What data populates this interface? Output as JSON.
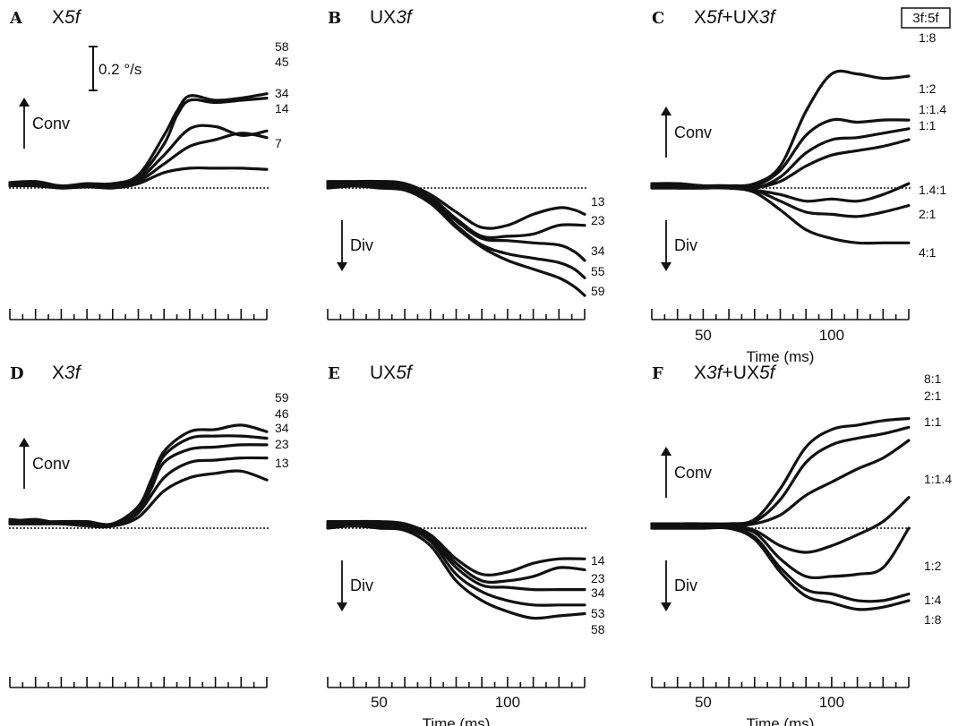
{
  "legend_box_label": "3f:5f",
  "scale_bar_label": "0.2 °/s",
  "scale_bar_value_deg_per_s": 0.2,
  "chart_data": [
    {
      "id": "A",
      "letter": "A",
      "type": "line",
      "title_parts": [
        {
          "t": "X",
          "i": false
        },
        {
          "t": "5f",
          "i": true
        }
      ],
      "direction": "up",
      "direction_label": "Conv",
      "xlabel": "",
      "xticks": [],
      "series": [
        {
          "label": "58",
          "x": [
            30,
            40,
            50,
            60,
            70,
            80,
            90,
            95,
            100,
            110,
            120,
            130
          ],
          "y": [
            0.025,
            0.03,
            0.01,
            0.02,
            0.02,
            0.06,
            0.24,
            0.35,
            0.42,
            0.4,
            0.41,
            0.43
          ]
        },
        {
          "label": "45",
          "x": [
            30,
            40,
            50,
            60,
            70,
            80,
            90,
            95,
            100,
            110,
            120,
            130
          ],
          "y": [
            0.015,
            0.02,
            0.0,
            0.01,
            0.015,
            0.05,
            0.2,
            0.33,
            0.4,
            0.39,
            0.4,
            0.41
          ]
        },
        {
          "label": "34",
          "x": [
            30,
            40,
            50,
            60,
            70,
            80,
            90,
            100,
            110,
            120,
            130
          ],
          "y": [
            0.02,
            0.02,
            0.005,
            0.005,
            0.01,
            0.04,
            0.15,
            0.27,
            0.28,
            0.24,
            0.26
          ]
        },
        {
          "label": "14",
          "x": [
            30,
            40,
            50,
            60,
            70,
            80,
            90,
            100,
            110,
            120,
            130
          ],
          "y": [
            0.01,
            0.015,
            0.0,
            0.01,
            0.005,
            0.03,
            0.11,
            0.19,
            0.22,
            0.25,
            0.23
          ]
        },
        {
          "label": "7",
          "x": [
            30,
            40,
            50,
            60,
            70,
            80,
            90,
            100,
            110,
            120,
            130
          ],
          "y": [
            0.01,
            0.01,
            0.0,
            0.005,
            0.0,
            0.02,
            0.07,
            0.09,
            0.09,
            0.09,
            0.085
          ]
        }
      ]
    },
    {
      "id": "B",
      "letter": "B",
      "type": "line",
      "title_parts": [
        {
          "t": "UX",
          "i": false
        },
        {
          "t": "3f",
          "i": true
        }
      ],
      "direction": "down",
      "direction_label": "Div",
      "xlabel": "",
      "xticks": [],
      "series": [
        {
          "label": "13",
          "x": [
            30,
            40,
            50,
            60,
            70,
            80,
            90,
            100,
            110,
            120,
            126,
            130
          ],
          "y": [
            0.03,
            0.03,
            0.03,
            0.02,
            -0.03,
            -0.11,
            -0.18,
            -0.17,
            -0.12,
            -0.09,
            -0.1,
            -0.12
          ]
        },
        {
          "label": "23",
          "x": [
            30,
            40,
            50,
            60,
            70,
            80,
            90,
            100,
            110,
            120,
            130
          ],
          "y": [
            0.02,
            0.02,
            0.03,
            0.02,
            -0.04,
            -0.14,
            -0.22,
            -0.22,
            -0.21,
            -0.17,
            -0.17
          ]
        },
        {
          "label": "34",
          "x": [
            30,
            40,
            50,
            60,
            70,
            80,
            90,
            100,
            110,
            120,
            126,
            130
          ],
          "y": [
            0.01,
            0.02,
            0.02,
            0.01,
            -0.05,
            -0.15,
            -0.23,
            -0.24,
            -0.25,
            -0.26,
            -0.29,
            -0.33
          ]
        },
        {
          "label": "55",
          "x": [
            30,
            40,
            50,
            60,
            70,
            80,
            90,
            100,
            110,
            120,
            126,
            130
          ],
          "y": [
            0.0,
            0.01,
            0.01,
            0.0,
            -0.06,
            -0.17,
            -0.26,
            -0.3,
            -0.32,
            -0.34,
            -0.37,
            -0.41
          ]
        },
        {
          "label": "59",
          "x": [
            30,
            40,
            50,
            60,
            70,
            80,
            90,
            100,
            110,
            120,
            126,
            130
          ],
          "y": [
            0.0,
            0.01,
            0.0,
            -0.01,
            -0.07,
            -0.18,
            -0.27,
            -0.33,
            -0.37,
            -0.41,
            -0.45,
            -0.49
          ]
        }
      ]
    },
    {
      "id": "C",
      "letter": "C",
      "type": "line",
      "title_parts": [
        {
          "t": "X",
          "i": false
        },
        {
          "t": "5f",
          "i": true
        },
        {
          "t": "+UX",
          "i": false
        },
        {
          "t": "3f",
          "i": true
        }
      ],
      "direction": "both",
      "up_label": "Conv",
      "down_label": "Div",
      "xlabel": "Time (ms)",
      "xticks": [
        50,
        100
      ],
      "series": [
        {
          "label": "1:8",
          "x": [
            30,
            40,
            50,
            60,
            70,
            80,
            90,
            100,
            110,
            120,
            130
          ],
          "y": [
            0.02,
            0.02,
            0.01,
            0.01,
            0.02,
            0.1,
            0.35,
            0.52,
            0.52,
            0.5,
            0.51
          ]
        },
        {
          "label": "1:2",
          "x": [
            30,
            40,
            50,
            60,
            70,
            80,
            90,
            100,
            110,
            120,
            130
          ],
          "y": [
            0.02,
            0.02,
            0.01,
            0.01,
            0.01,
            0.08,
            0.24,
            0.31,
            0.3,
            0.31,
            0.31
          ]
        },
        {
          "label": "1:1.4",
          "x": [
            30,
            40,
            50,
            60,
            70,
            80,
            90,
            100,
            110,
            120,
            130
          ],
          "y": [
            0.01,
            0.01,
            0.01,
            0.01,
            0.0,
            0.05,
            0.16,
            0.22,
            0.23,
            0.25,
            0.27
          ]
        },
        {
          "label": "1:1",
          "x": [
            30,
            40,
            50,
            60,
            70,
            80,
            90,
            100,
            110,
            120,
            130
          ],
          "y": [
            0.01,
            0.01,
            0.01,
            0.0,
            0.0,
            0.03,
            0.1,
            0.15,
            0.17,
            0.19,
            0.22
          ]
        },
        {
          "label": "1.4:1",
          "x": [
            30,
            40,
            50,
            60,
            70,
            80,
            90,
            100,
            110,
            120,
            130
          ],
          "y": [
            0.01,
            0.0,
            0.0,
            0.0,
            -0.01,
            -0.03,
            -0.06,
            -0.05,
            -0.06,
            -0.03,
            0.02
          ]
        },
        {
          "label": "2:1",
          "x": [
            30,
            40,
            50,
            60,
            70,
            80,
            90,
            100,
            110,
            120,
            130
          ],
          "y": [
            0.0,
            0.0,
            0.0,
            0.0,
            -0.01,
            -0.06,
            -0.11,
            -0.12,
            -0.13,
            -0.11,
            -0.08
          ]
        },
        {
          "label": "4:1",
          "x": [
            30,
            40,
            50,
            60,
            70,
            80,
            90,
            100,
            110,
            120,
            130
          ],
          "y": [
            0.0,
            0.0,
            0.0,
            0.0,
            -0.02,
            -0.1,
            -0.19,
            -0.23,
            -0.25,
            -0.25,
            -0.25
          ]
        }
      ]
    },
    {
      "id": "D",
      "letter": "D",
      "type": "line",
      "title_parts": [
        {
          "t": "X",
          "i": false
        },
        {
          "t": "3f",
          "i": true
        }
      ],
      "direction": "up",
      "direction_label": "Conv",
      "xlabel": "",
      "xticks": [],
      "series": [
        {
          "label": "59",
          "x": [
            30,
            40,
            50,
            60,
            70,
            80,
            85,
            90,
            100,
            110,
            120,
            130
          ],
          "y": [
            0.04,
            0.03,
            0.03,
            0.03,
            0.02,
            0.1,
            0.22,
            0.35,
            0.44,
            0.45,
            0.47,
            0.44
          ]
        },
        {
          "label": "46",
          "x": [
            30,
            40,
            50,
            60,
            70,
            80,
            85,
            90,
            100,
            110,
            120,
            130
          ],
          "y": [
            0.03,
            0.04,
            0.02,
            0.02,
            0.02,
            0.09,
            0.2,
            0.33,
            0.41,
            0.42,
            0.42,
            0.41
          ]
        },
        {
          "label": "34",
          "x": [
            30,
            40,
            50,
            60,
            70,
            80,
            85,
            90,
            100,
            110,
            120,
            130
          ],
          "y": [
            0.02,
            0.02,
            0.02,
            0.02,
            0.01,
            0.08,
            0.18,
            0.3,
            0.36,
            0.37,
            0.38,
            0.38
          ]
        },
        {
          "label": "23",
          "x": [
            30,
            40,
            50,
            60,
            70,
            80,
            90,
            100,
            110,
            120,
            130
          ],
          "y": [
            0.02,
            0.02,
            0.02,
            0.01,
            0.01,
            0.07,
            0.23,
            0.3,
            0.31,
            0.32,
            0.32
          ]
        },
        {
          "label": "13",
          "x": [
            30,
            40,
            50,
            60,
            70,
            80,
            90,
            100,
            110,
            120,
            130
          ],
          "y": [
            0.03,
            0.03,
            0.02,
            0.02,
            0.01,
            0.05,
            0.17,
            0.23,
            0.25,
            0.26,
            0.22
          ]
        }
      ]
    },
    {
      "id": "E",
      "letter": "E",
      "type": "line",
      "title_parts": [
        {
          "t": "UX",
          "i": false
        },
        {
          "t": "5f",
          "i": true
        }
      ],
      "direction": "down",
      "direction_label": "Div",
      "xlabel": "Time (ms)",
      "xticks": [
        50,
        100
      ],
      "series": [
        {
          "label": "14",
          "x": [
            30,
            40,
            50,
            60,
            70,
            80,
            90,
            100,
            110,
            120,
            130
          ],
          "y": [
            0.03,
            0.03,
            0.03,
            0.02,
            -0.03,
            -0.14,
            -0.21,
            -0.2,
            -0.16,
            -0.14,
            -0.14
          ]
        },
        {
          "label": "23",
          "x": [
            30,
            40,
            50,
            60,
            70,
            80,
            90,
            100,
            110,
            120,
            130
          ],
          "y": [
            0.02,
            0.02,
            0.02,
            0.01,
            -0.04,
            -0.16,
            -0.24,
            -0.24,
            -0.22,
            -0.18,
            -0.19
          ]
        },
        {
          "label": "34",
          "x": [
            30,
            40,
            50,
            60,
            70,
            80,
            90,
            100,
            110,
            120,
            130
          ],
          "y": [
            0.01,
            0.01,
            0.01,
            0.01,
            -0.05,
            -0.18,
            -0.26,
            -0.27,
            -0.28,
            -0.28,
            -0.28
          ]
        },
        {
          "label": "53",
          "x": [
            30,
            40,
            50,
            60,
            70,
            80,
            90,
            100,
            110,
            120,
            130
          ],
          "y": [
            0.01,
            0.01,
            0.01,
            0.0,
            -0.06,
            -0.21,
            -0.29,
            -0.33,
            -0.35,
            -0.35,
            -0.35
          ]
        },
        {
          "label": "58",
          "x": [
            30,
            40,
            50,
            60,
            70,
            80,
            90,
            100,
            110,
            120,
            130
          ],
          "y": [
            0.0,
            0.01,
            0.0,
            -0.01,
            -0.08,
            -0.24,
            -0.33,
            -0.38,
            -0.41,
            -0.4,
            -0.39
          ]
        }
      ]
    },
    {
      "id": "F",
      "letter": "F",
      "type": "line",
      "title_parts": [
        {
          "t": "X",
          "i": false
        },
        {
          "t": "3f",
          "i": true
        },
        {
          "t": "+UX",
          "i": false
        },
        {
          "t": "5f",
          "i": true
        }
      ],
      "direction": "both",
      "up_label": "Conv",
      "down_label": "Div",
      "xlabel": "Time (ms)",
      "xticks": [
        50,
        100
      ],
      "series": [
        {
          "label": "8:1",
          "x": [
            30,
            40,
            50,
            60,
            70,
            80,
            90,
            100,
            110,
            120,
            130
          ],
          "y": [
            0.02,
            0.02,
            0.02,
            0.02,
            0.04,
            0.18,
            0.37,
            0.45,
            0.47,
            0.49,
            0.5
          ]
        },
        {
          "label": "2:1",
          "x": [
            30,
            40,
            50,
            60,
            70,
            80,
            90,
            100,
            110,
            120,
            130
          ],
          "y": [
            0.02,
            0.02,
            0.02,
            0.02,
            0.03,
            0.13,
            0.3,
            0.38,
            0.41,
            0.43,
            0.46
          ]
        },
        {
          "label": "1:1",
          "x": [
            30,
            40,
            50,
            60,
            70,
            80,
            90,
            100,
            110,
            120,
            130
          ],
          "y": [
            0.02,
            0.02,
            0.02,
            0.01,
            0.02,
            0.06,
            0.15,
            0.21,
            0.27,
            0.32,
            0.4
          ]
        },
        {
          "label": "1:1.4",
          "x": [
            30,
            40,
            50,
            60,
            70,
            80,
            90,
            100,
            110,
            120,
            130
          ],
          "y": [
            0.01,
            0.01,
            0.01,
            0.01,
            -0.01,
            -0.08,
            -0.11,
            -0.08,
            -0.03,
            0.03,
            0.14
          ]
        },
        {
          "label": "1:2",
          "x": [
            30,
            40,
            50,
            60,
            70,
            80,
            90,
            100,
            110,
            120,
            130
          ],
          "y": [
            0.01,
            0.01,
            0.01,
            0.0,
            -0.02,
            -0.14,
            -0.22,
            -0.22,
            -0.21,
            -0.18,
            0.0
          ]
        },
        {
          "label": "1:4",
          "x": [
            30,
            40,
            50,
            60,
            70,
            80,
            90,
            100,
            110,
            120,
            130
          ],
          "y": [
            0.0,
            0.0,
            0.0,
            0.0,
            -0.04,
            -0.18,
            -0.28,
            -0.3,
            -0.33,
            -0.33,
            -0.3
          ]
        },
        {
          "label": "1:8",
          "x": [
            30,
            40,
            50,
            60,
            70,
            80,
            90,
            100,
            110,
            120,
            130
          ],
          "y": [
            0.0,
            0.0,
            0.0,
            0.0,
            -0.05,
            -0.2,
            -0.31,
            -0.34,
            -0.37,
            -0.36,
            -0.33
          ]
        }
      ]
    }
  ]
}
